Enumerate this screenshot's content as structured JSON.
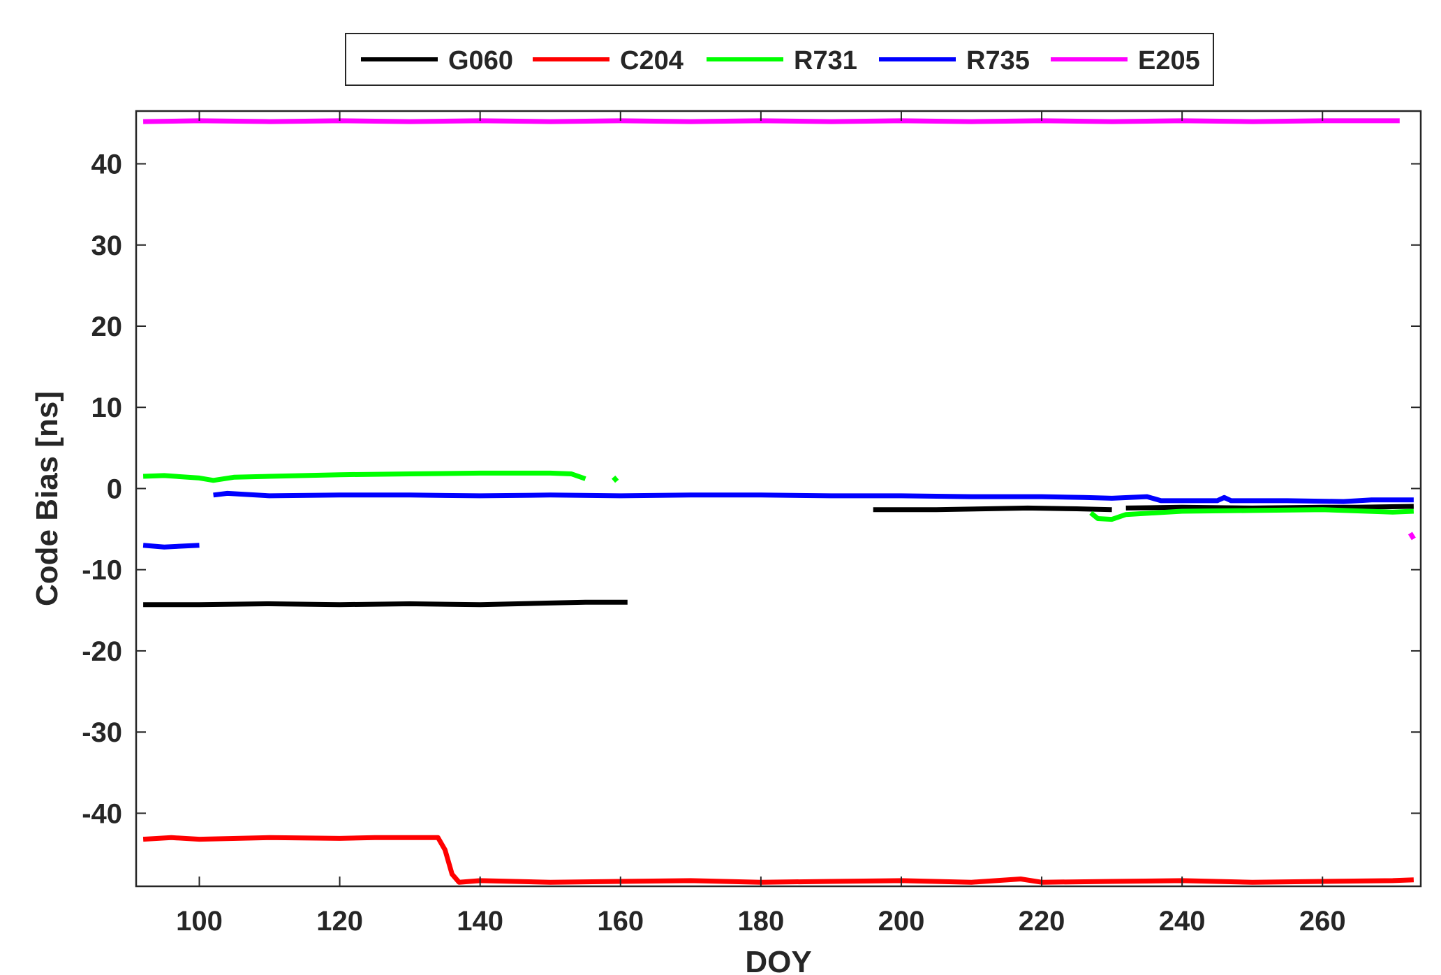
{
  "chart_data": {
    "type": "line",
    "title": "",
    "xlabel": "DOY",
    "ylabel": "Code Bias  [ns]",
    "xlim": [
      91,
      274
    ],
    "ylim": [
      -49,
      46.5
    ],
    "xticks": [
      100,
      120,
      140,
      160,
      180,
      200,
      220,
      240,
      260
    ],
    "yticks": [
      -40,
      -30,
      -20,
      -10,
      0,
      10,
      20,
      30,
      40
    ],
    "grid": false,
    "legend_position": "top-center-outside",
    "series": [
      {
        "name": "G060",
        "color": "#000000",
        "segments": [
          [
            [
              92,
              -14.3
            ],
            [
              100,
              -14.3
            ],
            [
              110,
              -14.2
            ],
            [
              120,
              -14.3
            ],
            [
              130,
              -14.2
            ],
            [
              140,
              -14.3
            ],
            [
              150,
              -14.1
            ],
            [
              155,
              -14.0
            ],
            [
              160,
              -14.0
            ],
            [
              161,
              -14.0
            ]
          ],
          [
            [
              196,
              -2.6
            ],
            [
              205,
              -2.6
            ],
            [
              212,
              -2.5
            ],
            [
              218,
              -2.4
            ],
            [
              225,
              -2.5
            ],
            [
              230,
              -2.6
            ]
          ],
          [
            [
              232,
              -2.4
            ],
            [
              240,
              -2.3
            ],
            [
              250,
              -2.4
            ],
            [
              260,
              -2.3
            ],
            [
              265,
              -2.3
            ],
            [
              273,
              -2.2
            ]
          ]
        ]
      },
      {
        "name": "C204",
        "color": "#ff0000",
        "segments": [
          [
            [
              92,
              -43.2
            ],
            [
              96,
              -43.0
            ],
            [
              100,
              -43.2
            ],
            [
              110,
              -43.0
            ],
            [
              120,
              -43.1
            ],
            [
              125,
              -43.0
            ],
            [
              130,
              -43.0
            ],
            [
              134,
              -43.0
            ],
            [
              135,
              -44.5
            ],
            [
              136,
              -47.5
            ],
            [
              137,
              -48.5
            ],
            [
              140,
              -48.3
            ],
            [
              150,
              -48.5
            ],
            [
              160,
              -48.4
            ],
            [
              170,
              -48.3
            ],
            [
              180,
              -48.5
            ],
            [
              190,
              -48.4
            ],
            [
              200,
              -48.3
            ],
            [
              210,
              -48.5
            ],
            [
              217,
              -48.1
            ],
            [
              220,
              -48.5
            ],
            [
              230,
              -48.4
            ],
            [
              240,
              -48.3
            ],
            [
              250,
              -48.5
            ],
            [
              260,
              -48.4
            ],
            [
              270,
              -48.3
            ],
            [
              273,
              -48.2
            ]
          ]
        ]
      },
      {
        "name": "R731",
        "color": "#00ff00",
        "segments": [
          [
            [
              92,
              1.5
            ],
            [
              95,
              1.6
            ],
            [
              100,
              1.3
            ],
            [
              102,
              1.0
            ],
            [
              105,
              1.4
            ],
            [
              110,
              1.5
            ],
            [
              120,
              1.7
            ],
            [
              130,
              1.8
            ],
            [
              140,
              1.9
            ],
            [
              150,
              1.9
            ],
            [
              153,
              1.8
            ],
            [
              155,
              1.2
            ]
          ],
          [
            [
              159,
              1.4
            ],
            [
              159.5,
              0.9
            ]
          ],
          [
            [
              227,
              -3.0
            ],
            [
              228,
              -3.7
            ],
            [
              230,
              -3.8
            ],
            [
              232,
              -3.2
            ],
            [
              240,
              -2.8
            ],
            [
              250,
              -2.7
            ],
            [
              260,
              -2.6
            ],
            [
              270,
              -2.9
            ],
            [
              273,
              -2.8
            ]
          ]
        ]
      },
      {
        "name": "R735",
        "color": "#0000ff",
        "segments": [
          [
            [
              92,
              -7.0
            ],
            [
              95,
              -7.2
            ],
            [
              100,
              -7.0
            ]
          ],
          [
            [
              102,
              -0.8
            ],
            [
              104,
              -0.6
            ],
            [
              110,
              -0.9
            ],
            [
              120,
              -0.8
            ],
            [
              130,
              -0.8
            ],
            [
              140,
              -0.9
            ],
            [
              150,
              -0.8
            ],
            [
              160,
              -0.9
            ],
            [
              170,
              -0.8
            ],
            [
              180,
              -0.8
            ],
            [
              190,
              -0.9
            ],
            [
              200,
              -0.9
            ],
            [
              210,
              -1.0
            ],
            [
              220,
              -1.0
            ],
            [
              226,
              -1.1
            ],
            [
              230,
              -1.2
            ],
            [
              235,
              -1.0
            ],
            [
              237,
              -1.5
            ],
            [
              245,
              -1.5
            ],
            [
              246,
              -1.1
            ],
            [
              247,
              -1.5
            ],
            [
              255,
              -1.5
            ],
            [
              263,
              -1.6
            ],
            [
              267,
              -1.4
            ],
            [
              273,
              -1.4
            ]
          ]
        ]
      },
      {
        "name": "E205",
        "color": "#ff00ff",
        "segments": [
          [
            [
              92,
              45.2
            ],
            [
              100,
              45.3
            ],
            [
              110,
              45.2
            ],
            [
              120,
              45.3
            ],
            [
              130,
              45.2
            ],
            [
              140,
              45.3
            ],
            [
              150,
              45.2
            ],
            [
              160,
              45.3
            ],
            [
              170,
              45.2
            ],
            [
              180,
              45.3
            ],
            [
              190,
              45.2
            ],
            [
              200,
              45.3
            ],
            [
              210,
              45.2
            ],
            [
              220,
              45.3
            ],
            [
              230,
              45.2
            ],
            [
              240,
              45.3
            ],
            [
              250,
              45.2
            ],
            [
              260,
              45.3
            ],
            [
              270,
              45.3
            ],
            [
              271,
              45.3
            ]
          ],
          [
            [
              272.5,
              -5.5
            ],
            [
              273,
              -6.2
            ]
          ]
        ]
      }
    ]
  }
}
